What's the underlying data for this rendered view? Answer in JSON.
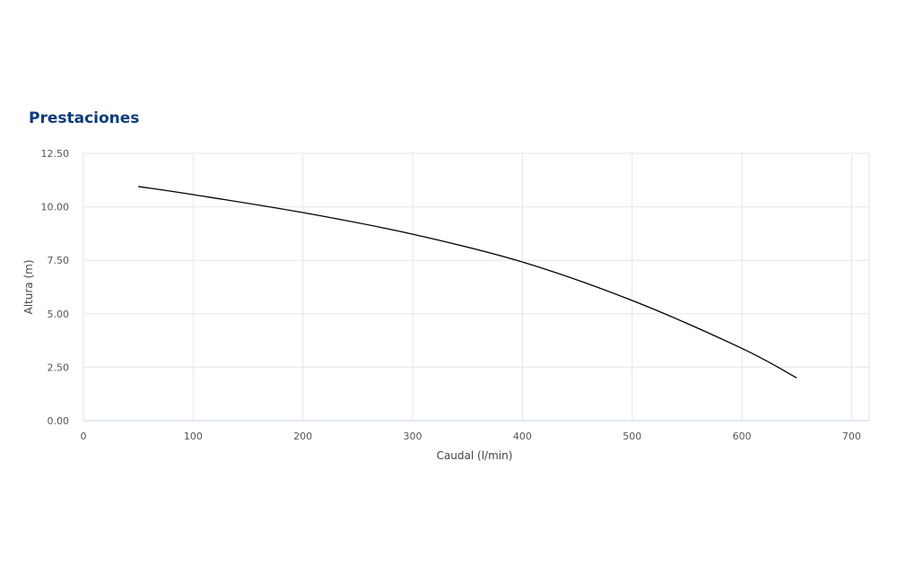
{
  "chart_data": {
    "type": "line",
    "title": "Prestaciones",
    "xlabel": "Caudal (l/min)",
    "ylabel": "Altura (m)",
    "xlim": [
      0,
      716
    ],
    "ylim": [
      0,
      12.5
    ],
    "x_ticks": [
      "0",
      "100",
      "200",
      "300",
      "400",
      "500",
      "600",
      "700"
    ],
    "y_ticks": [
      "0.00",
      "2.50",
      "5.00",
      "7.50",
      "10.00",
      "12.50"
    ],
    "grid": true,
    "series": [
      {
        "x": [
          50,
          100,
          200,
          300,
          400,
          500,
          600,
          650
        ],
        "y": [
          10.95,
          10.57,
          9.73,
          8.72,
          7.42,
          5.62,
          3.38,
          2.0
        ],
        "color": "#000000"
      }
    ]
  },
  "colors": {
    "title": "#0d3d7a",
    "grid": "#e6e6e6",
    "x_axis": "#ccd6eb"
  }
}
